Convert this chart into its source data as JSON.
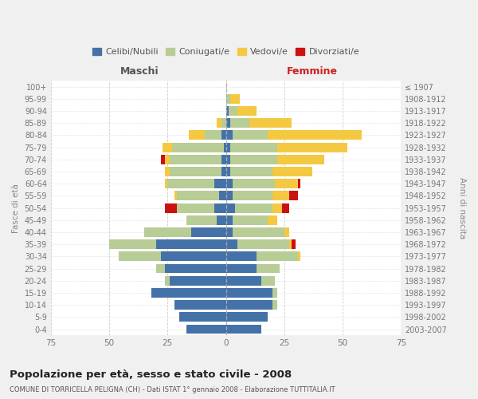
{
  "age_groups": [
    "0-4",
    "5-9",
    "10-14",
    "15-19",
    "20-24",
    "25-29",
    "30-34",
    "35-39",
    "40-44",
    "45-49",
    "50-54",
    "55-59",
    "60-64",
    "65-69",
    "70-74",
    "75-79",
    "80-84",
    "85-89",
    "90-94",
    "95-99",
    "100+"
  ],
  "birth_years": [
    "2003-2007",
    "1998-2002",
    "1993-1997",
    "1988-1992",
    "1983-1987",
    "1978-1982",
    "1973-1977",
    "1968-1972",
    "1963-1967",
    "1958-1962",
    "1953-1957",
    "1948-1952",
    "1943-1947",
    "1938-1942",
    "1933-1937",
    "1928-1932",
    "1923-1927",
    "1918-1922",
    "1913-1917",
    "1908-1912",
    "≤ 1907"
  ],
  "colors": {
    "celibi": "#4472a8",
    "coniugati": "#b8cc96",
    "vedovi": "#f5c842",
    "divorziati": "#cc1111"
  },
  "maschi": {
    "celibi": [
      17,
      20,
      22,
      32,
      24,
      26,
      28,
      30,
      15,
      4,
      5,
      3,
      5,
      2,
      2,
      1,
      2,
      0,
      0,
      0,
      0
    ],
    "coniugati": [
      0,
      0,
      0,
      0,
      2,
      4,
      18,
      20,
      20,
      13,
      16,
      18,
      20,
      22,
      22,
      22,
      7,
      2,
      0,
      0,
      0
    ],
    "vedovi": [
      0,
      0,
      0,
      0,
      0,
      0,
      0,
      0,
      0,
      0,
      0,
      1,
      1,
      2,
      2,
      4,
      7,
      2,
      0,
      0,
      0
    ],
    "divorziati": [
      0,
      0,
      0,
      0,
      0,
      0,
      0,
      0,
      0,
      0,
      5,
      0,
      0,
      0,
      2,
      0,
      0,
      0,
      0,
      0,
      0
    ]
  },
  "femmine": {
    "celibi": [
      15,
      18,
      20,
      20,
      15,
      13,
      13,
      5,
      3,
      3,
      4,
      3,
      3,
      2,
      2,
      2,
      3,
      2,
      1,
      0,
      0
    ],
    "coniugati": [
      0,
      0,
      2,
      2,
      6,
      10,
      18,
      22,
      22,
      15,
      16,
      17,
      18,
      18,
      20,
      20,
      15,
      8,
      4,
      2,
      0
    ],
    "vedovi": [
      0,
      0,
      0,
      0,
      0,
      0,
      1,
      1,
      2,
      4,
      4,
      7,
      10,
      17,
      20,
      30,
      40,
      18,
      8,
      4,
      0
    ],
    "divorziati": [
      0,
      0,
      0,
      0,
      0,
      0,
      0,
      2,
      0,
      0,
      3,
      4,
      1,
      0,
      0,
      0,
      0,
      0,
      0,
      0,
      0
    ]
  },
  "xlim": 75,
  "title": "Popolazione per età, sesso e stato civile - 2008",
  "subtitle": "COMUNE DI TORRICELLA PELIGNA (CH) - Dati ISTAT 1° gennaio 2008 - Elaborazione TUTTITALIA.IT",
  "ylabel_left": "Fasce di età",
  "ylabel_right": "Anni di nascita",
  "xlabel_maschi": "Maschi",
  "xlabel_femmine": "Femmine",
  "legend_labels": [
    "Celibi/Nubili",
    "Coniugati/e",
    "Vedovi/e",
    "Divorziati/e"
  ],
  "bg_color": "#f0f0f0",
  "plot_bg_color": "#ffffff"
}
